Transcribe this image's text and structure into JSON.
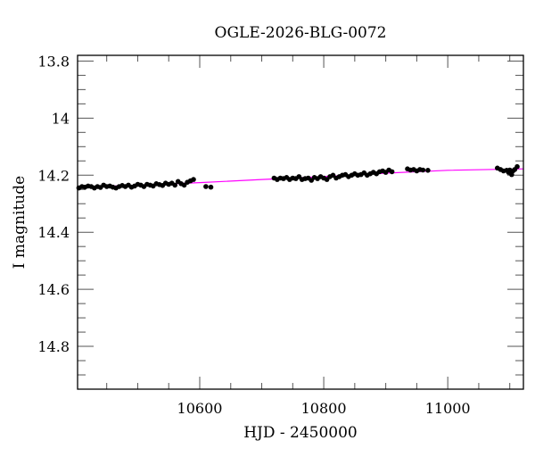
{
  "chart_data": {
    "type": "scatter",
    "title": "OGLE-2026-BLG-0072",
    "xlabel": "HJD - 2450000",
    "ylabel": "I magnitude",
    "xlim": [
      10403,
      11122
    ],
    "ylim": [
      13.78,
      14.95
    ],
    "y_inverted": true,
    "grid": false,
    "legend": null,
    "x_ticks": [
      10600,
      10800,
      11000
    ],
    "x_tick_labels": [
      "10600",
      "10800",
      "11000"
    ],
    "y_ticks": [
      13.8,
      14.0,
      14.2,
      14.4,
      14.6,
      14.8
    ],
    "y_tick_labels": [
      "13.8",
      "14",
      "14.2",
      "14.4",
      "14.6",
      "14.8"
    ],
    "series": [
      {
        "name": "observations",
        "kind": "scatter",
        "color": "#000000",
        "points": [
          [
            10405,
            14.245
          ],
          [
            10410,
            14.24
          ],
          [
            10415,
            14.242
          ],
          [
            10420,
            14.238
          ],
          [
            10425,
            14.24
          ],
          [
            10430,
            14.245
          ],
          [
            10435,
            14.24
          ],
          [
            10440,
            14.243
          ],
          [
            10445,
            14.235
          ],
          [
            10450,
            14.24
          ],
          [
            10455,
            14.238
          ],
          [
            10460,
            14.242
          ],
          [
            10465,
            14.245
          ],
          [
            10470,
            14.24
          ],
          [
            10475,
            14.236
          ],
          [
            10480,
            14.24
          ],
          [
            10485,
            14.235
          ],
          [
            10490,
            14.242
          ],
          [
            10495,
            14.238
          ],
          [
            10500,
            14.232
          ],
          [
            10505,
            14.235
          ],
          [
            10510,
            14.24
          ],
          [
            10515,
            14.232
          ],
          [
            10520,
            14.235
          ],
          [
            10525,
            14.238
          ],
          [
            10530,
            14.23
          ],
          [
            10535,
            14.233
          ],
          [
            10540,
            14.236
          ],
          [
            10545,
            14.228
          ],
          [
            10550,
            14.232
          ],
          [
            10555,
            14.228
          ],
          [
            10560,
            14.235
          ],
          [
            10565,
            14.222
          ],
          [
            10570,
            14.23
          ],
          [
            10575,
            14.235
          ],
          [
            10580,
            14.225
          ],
          [
            10585,
            14.22
          ],
          [
            10590,
            14.215
          ],
          [
            10610,
            14.24
          ],
          [
            10618,
            14.242
          ],
          [
            10720,
            14.21
          ],
          [
            10725,
            14.215
          ],
          [
            10730,
            14.21
          ],
          [
            10735,
            14.212
          ],
          [
            10740,
            14.208
          ],
          [
            10745,
            14.215
          ],
          [
            10750,
            14.21
          ],
          [
            10755,
            14.212
          ],
          [
            10760,
            14.205
          ],
          [
            10765,
            14.215
          ],
          [
            10770,
            14.212
          ],
          [
            10775,
            14.21
          ],
          [
            10780,
            14.218
          ],
          [
            10785,
            14.208
          ],
          [
            10790,
            14.212
          ],
          [
            10795,
            14.205
          ],
          [
            10800,
            14.21
          ],
          [
            10805,
            14.215
          ],
          [
            10810,
            14.205
          ],
          [
            10815,
            14.2
          ],
          [
            10820,
            14.21
          ],
          [
            10825,
            14.205
          ],
          [
            10830,
            14.2
          ],
          [
            10835,
            14.198
          ],
          [
            10840,
            14.205
          ],
          [
            10845,
            14.2
          ],
          [
            10850,
            14.195
          ],
          [
            10855,
            14.2
          ],
          [
            10860,
            14.198
          ],
          [
            10865,
            14.192
          ],
          [
            10870,
            14.2
          ],
          [
            10875,
            14.195
          ],
          [
            10880,
            14.19
          ],
          [
            10885,
            14.195
          ],
          [
            10890,
            14.188
          ],
          [
            10895,
            14.185
          ],
          [
            10900,
            14.19
          ],
          [
            10905,
            14.182
          ],
          [
            10910,
            14.188
          ],
          [
            10935,
            14.178
          ],
          [
            10940,
            14.182
          ],
          [
            10945,
            14.18
          ],
          [
            10950,
            14.185
          ],
          [
            10955,
            14.18
          ],
          [
            10960,
            14.182
          ],
          [
            10968,
            14.183
          ],
          [
            11080,
            14.175
          ],
          [
            11085,
            14.18
          ],
          [
            11090,
            14.185
          ],
          [
            11095,
            14.183
          ],
          [
            11098,
            14.19
          ],
          [
            11100,
            14.182
          ],
          [
            11103,
            14.198
          ],
          [
            11105,
            14.185
          ],
          [
            11108,
            14.18
          ],
          [
            11112,
            14.17
          ]
        ]
      },
      {
        "name": "model",
        "kind": "line",
        "color": "#ff00ff",
        "points": [
          [
            10403,
            14.243
          ],
          [
            10500,
            14.235
          ],
          [
            10600,
            14.226
          ],
          [
            10700,
            14.215
          ],
          [
            10800,
            14.205
          ],
          [
            10900,
            14.193
          ],
          [
            11000,
            14.183
          ],
          [
            11122,
            14.178
          ]
        ]
      }
    ]
  }
}
